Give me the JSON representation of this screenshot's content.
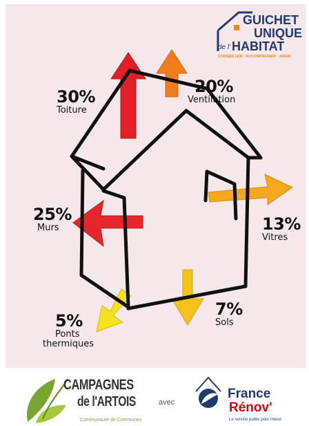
{
  "labels": {
    "roof": {
      "percent": "30%",
      "name": "Toiture"
    },
    "ventilation": {
      "percent": "20%",
      "name": "Ventilation"
    },
    "walls": {
      "percent": "25%",
      "name": "Murs"
    },
    "windows": {
      "percent": "13%",
      "name": "Vitres"
    },
    "floors": {
      "percent": "7%",
      "name": "Sols"
    },
    "thermal_bridges": {
      "percent": "5%",
      "name_line1": "Ponts",
      "name_line2": "thermiques"
    }
  },
  "guichet_logo": {
    "line1": "GUICHET",
    "line2": "UNIQUE",
    "line3_prefix": "de l'",
    "line3": "HABITAT",
    "tagline": "CONSEILLER · ACCOMPAGNER · AIDER"
  },
  "footer": {
    "campagnes_line1": "CAMPAGNES",
    "campagnes_line2": "de l'ARTOIS",
    "campagnes_sub": "Communauté de Communes",
    "connector": "avec",
    "france_renov_line1": "France",
    "france_renov_line2": "Rénov'",
    "france_renov_sub": "Le service public pour mieux"
  },
  "colors": {
    "background": "#f6e8ea",
    "roof_arrow": "#e01f26",
    "ventilation_arrow": "#f07c1a",
    "walls_arrow": "#e5262c",
    "windows_arrow": "#f3a81f",
    "floors_arrow": "#f5c21a",
    "thermal_bridges_arrow": "#f3e21c",
    "logo_blue": "#1f3a6e",
    "logo_orange": "#f08a12",
    "campagnes_green": "#78a630"
  }
}
